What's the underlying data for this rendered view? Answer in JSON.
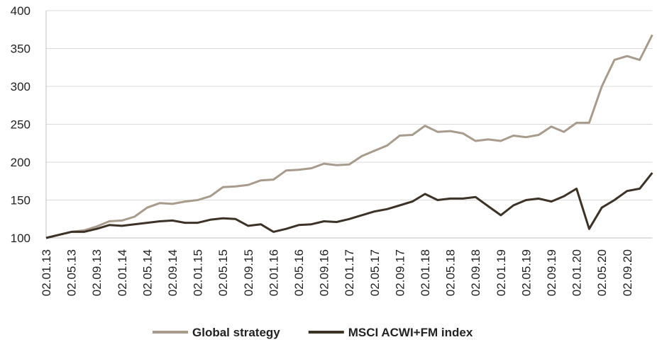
{
  "chart_data": {
    "type": "line",
    "categories": [
      "02.01.13",
      null,
      "02.05.13",
      null,
      "02.09.13",
      null,
      "02.01.14",
      null,
      "02.05.14",
      null,
      "02.09.14",
      null,
      "02.01.15",
      null,
      "02.05.15",
      null,
      "02.09.15",
      null,
      "02.01.16",
      null,
      "02.05.16",
      null,
      "02.09.16",
      null,
      "02.01.17",
      null,
      "02.05.17",
      null,
      "02.09.17",
      null,
      "02.01.18",
      null,
      "02.05.18",
      null,
      "02.09.18",
      null,
      "02.01.19",
      null,
      "02.05.19",
      null,
      "02.09.19",
      null,
      "02.01.20",
      null,
      "02.05.20",
      null,
      "02.09.20",
      null,
      null
    ],
    "series": [
      {
        "name": "Global strategy",
        "color": "#a89b8c",
        "values": [
          100,
          104,
          108,
          110,
          115,
          122,
          123,
          128,
          140,
          146,
          145,
          148,
          150,
          155,
          167,
          168,
          170,
          176,
          177,
          189,
          190,
          192,
          198,
          196,
          197,
          208,
          215,
          222,
          235,
          236,
          248,
          240,
          241,
          238,
          228,
          230,
          228,
          235,
          233,
          236,
          247,
          240,
          252,
          252,
          300,
          335,
          340,
          335,
          368
        ]
      },
      {
        "name": "MSCI ACWI+FM index",
        "color": "#3d3226",
        "values": [
          100,
          104,
          108,
          108,
          112,
          117,
          116,
          118,
          120,
          122,
          123,
          120,
          120,
          124,
          126,
          125,
          116,
          118,
          108,
          112,
          117,
          118,
          122,
          121,
          125,
          130,
          135,
          138,
          143,
          148,
          158,
          150,
          152,
          152,
          154,
          142,
          130,
          143,
          150,
          152,
          148,
          155,
          165,
          112,
          140,
          150,
          162,
          165,
          186
        ]
      }
    ],
    "ylim": [
      100,
      400
    ],
    "yticks": [
      100,
      150,
      200,
      250,
      300,
      350,
      400
    ],
    "grid": true
  }
}
